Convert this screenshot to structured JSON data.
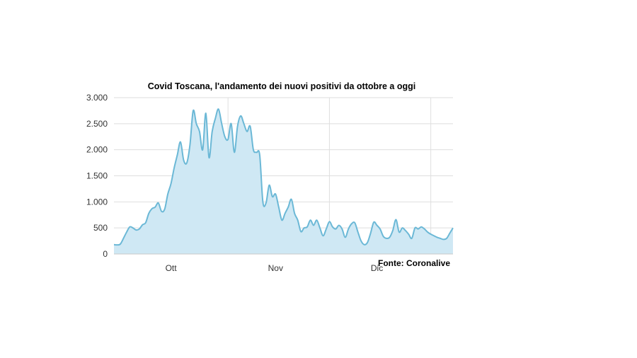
{
  "chart_data": {
    "type": "area",
    "title": "Covid Toscana, l'andamento dei nuovi positivi da ottobre a oggi",
    "source": "Fonte: Coronalive",
    "xlabel": "",
    "ylabel": "",
    "ylim": [
      0,
      3000
    ],
    "yticks": [
      0,
      500,
      1000,
      1500,
      2000,
      2500,
      3000
    ],
    "ytick_labels": [
      "0",
      "500",
      "1.000",
      "1.500",
      "2.000",
      "2.500",
      "3.000"
    ],
    "xticks": [
      "Ott",
      "Nov",
      "Dic"
    ],
    "grid": true,
    "series_color": "#6bb8d6",
    "fill_color": "#cfe8f4",
    "x": [
      "2020-09-22",
      "2020-09-23",
      "2020-09-24",
      "2020-09-25",
      "2020-09-26",
      "2020-09-27",
      "2020-09-28",
      "2020-09-29",
      "2020-09-30",
      "2020-10-01",
      "2020-10-02",
      "2020-10-03",
      "2020-10-04",
      "2020-10-05",
      "2020-10-06",
      "2020-10-07",
      "2020-10-08",
      "2020-10-09",
      "2020-10-10",
      "2020-10-11",
      "2020-10-12",
      "2020-10-13",
      "2020-10-14",
      "2020-10-15",
      "2020-10-16",
      "2020-10-17",
      "2020-10-18",
      "2020-10-19",
      "2020-10-20",
      "2020-10-21",
      "2020-10-22",
      "2020-10-23",
      "2020-10-24",
      "2020-10-25",
      "2020-10-26",
      "2020-10-27",
      "2020-10-28",
      "2020-10-29",
      "2020-10-30",
      "2020-10-31",
      "2020-11-01",
      "2020-11-02",
      "2020-11-03",
      "2020-11-04",
      "2020-11-05",
      "2020-11-06",
      "2020-11-07",
      "2020-11-08",
      "2020-11-09",
      "2020-11-10",
      "2020-11-11",
      "2020-11-12",
      "2020-11-13",
      "2020-11-14",
      "2020-11-15",
      "2020-11-16",
      "2020-11-17",
      "2020-11-18",
      "2020-11-19",
      "2020-11-20",
      "2020-11-21",
      "2020-11-22",
      "2020-11-23",
      "2020-11-24",
      "2020-11-25",
      "2020-11-26",
      "2020-11-27",
      "2020-11-28",
      "2020-11-29",
      "2020-11-30",
      "2020-12-01",
      "2020-12-02",
      "2020-12-03",
      "2020-12-04",
      "2020-12-05",
      "2020-12-06",
      "2020-12-07",
      "2020-12-08",
      "2020-12-09",
      "2020-12-10",
      "2020-12-11",
      "2020-12-12",
      "2020-12-13",
      "2020-12-14",
      "2020-12-15",
      "2020-12-16",
      "2020-12-17",
      "2020-12-18",
      "2020-12-19",
      "2020-12-20",
      "2020-12-21",
      "2020-12-22",
      "2020-12-23",
      "2020-12-24",
      "2020-12-25",
      "2020-12-26",
      "2020-12-27",
      "2020-12-28",
      "2020-12-29",
      "2020-12-30",
      "2020-12-31",
      "2021-01-01",
      "2021-01-02",
      "2021-01-03",
      "2021-01-04",
      "2021-01-05",
      "2021-01-06",
      "2021-01-07"
    ],
    "values": [
      180,
      175,
      190,
      300,
      420,
      520,
      500,
      460,
      480,
      560,
      600,
      780,
      870,
      900,
      980,
      820,
      860,
      1150,
      1350,
      1650,
      1900,
      2150,
      1800,
      1750,
      2100,
      2750,
      2500,
      2350,
      2000,
      2700,
      1850,
      2350,
      2600,
      2780,
      2500,
      2250,
      2200,
      2500,
      1950,
      2450,
      2650,
      2500,
      2350,
      2450,
      2000,
      1950,
      1900,
      1000,
      980,
      1320,
      1100,
      1150,
      900,
      650,
      780,
      900,
      1050,
      780,
      650,
      430,
      500,
      520,
      650,
      550,
      650,
      500,
      350,
      480,
      620,
      520,
      480,
      550,
      480,
      320,
      480,
      580,
      600,
      420,
      250,
      180,
      220,
      400,
      610,
      550,
      480,
      340,
      300,
      320,
      450,
      660,
      420,
      500,
      450,
      380,
      300,
      500,
      480,
      520,
      480,
      420,
      380,
      350,
      320,
      300,
      280,
      300,
      400,
      500
    ]
  }
}
